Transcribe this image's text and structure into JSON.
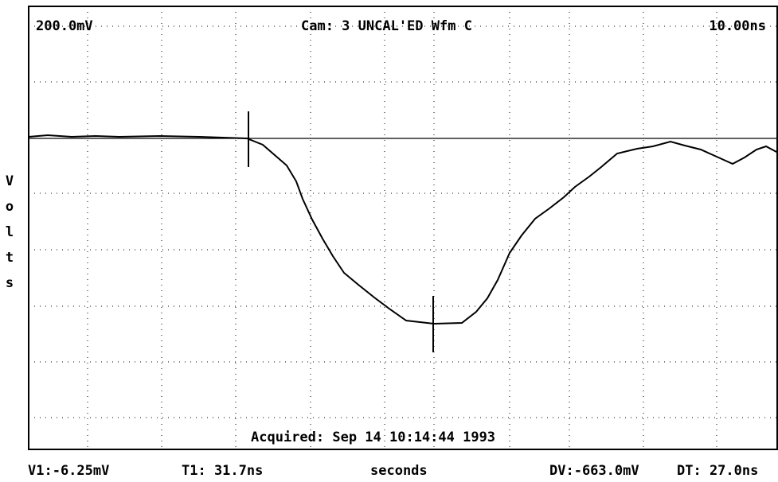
{
  "screen": {
    "top_left": "200.0mV",
    "top_center": "Cam: 3 UNCAL'ED Wfm C",
    "top_right": "10.00ns",
    "y_axis_label": "Volts",
    "acquired": "Acquired: Sep 14 10:14:44 1993",
    "status": [
      "V1:-6.25mV",
      "T1: 31.7ns",
      "seconds",
      "DV:-663.0mV",
      "DT: 27.0ns"
    ]
  }
}
